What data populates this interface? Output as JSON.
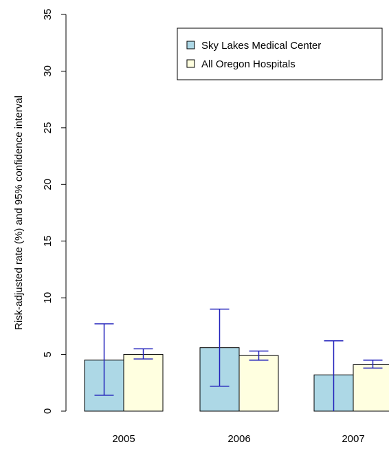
{
  "chart_data": {
    "type": "bar",
    "title": "",
    "xlabel": "",
    "ylabel": "Risk-adjusted rate (%) and 95% confidence interval",
    "ylim": [
      0,
      35
    ],
    "yticks": [
      "0",
      "5",
      "10",
      "15",
      "20",
      "25",
      "30",
      "35"
    ],
    "categories": [
      "2005",
      "2006",
      "2007"
    ],
    "series": [
      {
        "name": "Sky Lakes Medical Center",
        "color": "#add8e6",
        "values": [
          4.5,
          5.6,
          3.2
        ],
        "ci_low": [
          1.4,
          2.2,
          0.0
        ],
        "ci_high": [
          7.7,
          9.0,
          6.2
        ]
      },
      {
        "name": "All Oregon Hospitals",
        "color": "#ffffe0",
        "values": [
          5.0,
          4.9,
          4.1
        ],
        "ci_low": [
          4.6,
          4.5,
          3.8
        ],
        "ci_high": [
          5.5,
          5.3,
          4.5
        ]
      }
    ],
    "error_bar_color": "#2222bb",
    "legend_position": "top-right",
    "grid": false
  }
}
